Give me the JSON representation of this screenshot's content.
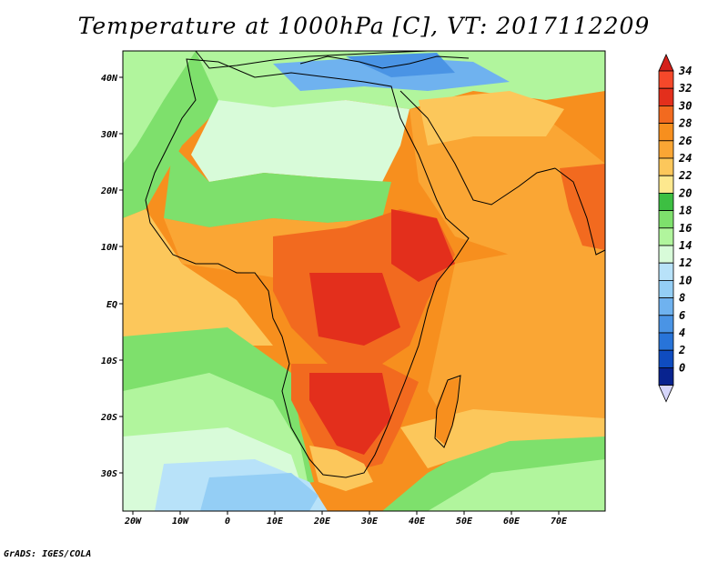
{
  "title": "Temperature at 1000hPa [C], VT: 2017112209",
  "credit": "GrADS: IGES/COLA",
  "lon_labels": [
    "20W",
    "10W",
    "0",
    "10E",
    "20E",
    "30E",
    "40E",
    "50E",
    "60E",
    "70E"
  ],
  "lat_labels": [
    "40N",
    "30N",
    "20N",
    "10N",
    "EQ",
    "10S",
    "20S",
    "30S"
  ],
  "legend": {
    "levels": [
      "34",
      "32",
      "30",
      "28",
      "26",
      "24",
      "22",
      "20",
      "18",
      "16",
      "14",
      "12",
      "10",
      "8",
      "6",
      "4",
      "2",
      "0"
    ],
    "colors": [
      "#f5482a",
      "#e32f1c",
      "#f26a1f",
      "#f78f1e",
      "#faa634",
      "#fcc75b",
      "#fde88e",
      "#3dbf42",
      "#7ee06c",
      "#b1f59d",
      "#d8fbd9",
      "#b8e2f9",
      "#94cef5",
      "#6fb2ef",
      "#4a94e5",
      "#2874d9",
      "#0f4cc0",
      "#08238f",
      "#061c70"
    ],
    "top_arrow_color": "#d4201a",
    "bottom_arrow_color": "#d6d6fb"
  },
  "map_colors": {
    "ocean_cool": "#7ee06c",
    "ocean_mild": "#b1f59d",
    "ocean_warm": "#fcc75b",
    "ocean_hot": "#faa634",
    "land_hot": "#e32f1c",
    "land_warm": "#f78f1e",
    "sahara": "#b1f59d",
    "med": "#6fb2ef"
  }
}
